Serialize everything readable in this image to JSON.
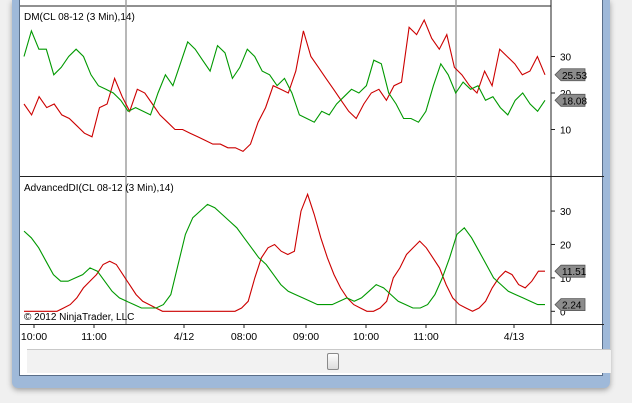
{
  "chart_data": [
    {
      "type": "line",
      "title": "DM(CL 08-12 (3 Min),14)",
      "ylim": [
        0,
        40
      ],
      "yticks": [
        10,
        20,
        30
      ],
      "series": [
        {
          "color": "#cc0000",
          "current": "25.53",
          "values": [
            17,
            14,
            19,
            16,
            17,
            14,
            13,
            11,
            9,
            8,
            16,
            17,
            24,
            19,
            15,
            21,
            20,
            17,
            14,
            12,
            10,
            10,
            9,
            8,
            7,
            6,
            6,
            5,
            5,
            4,
            6,
            12,
            16,
            22,
            21,
            20,
            26,
            37,
            30,
            27,
            24,
            21,
            18,
            15,
            13,
            17,
            20,
            21,
            18,
            22,
            23,
            38,
            36,
            40,
            35,
            32,
            36,
            27,
            25,
            22,
            20,
            26,
            22,
            32,
            30,
            28,
            25,
            26,
            30,
            25
          ]
        },
        {
          "color": "#009900",
          "current": "18.08",
          "values": [
            30,
            37,
            32,
            32,
            25,
            27,
            30,
            32,
            30,
            25,
            22,
            21,
            20,
            18,
            15,
            16,
            15,
            14,
            20,
            25,
            22,
            28,
            34,
            32,
            29,
            26,
            33,
            31,
            24,
            27,
            32,
            30,
            26,
            25,
            22,
            24,
            20,
            14,
            13,
            12,
            15,
            14,
            17,
            19,
            21,
            20,
            22,
            29,
            28,
            20,
            17,
            13,
            13,
            12,
            15,
            22,
            28,
            25,
            20,
            23,
            21,
            22,
            18,
            19,
            16,
            14,
            18,
            20,
            17,
            15,
            18
          ]
        }
      ]
    },
    {
      "type": "line",
      "title": "AdvancedDI(CL 08-12 (3 Min),14)",
      "ylim": [
        -2,
        36
      ],
      "yticks": [
        0,
        10,
        20,
        30
      ],
      "series": [
        {
          "color": "#cc0000",
          "current": "11.51",
          "values": [
            0,
            0,
            0,
            0,
            0,
            0,
            1,
            2,
            4,
            7,
            9,
            11,
            14,
            15,
            14,
            11,
            8,
            5,
            3,
            2,
            1,
            0,
            0,
            0,
            0,
            0,
            0,
            0,
            0,
            0,
            0,
            0,
            0,
            1,
            3,
            10,
            16,
            19,
            20,
            18,
            17,
            18,
            30,
            35,
            29,
            22,
            16,
            11,
            7,
            4,
            2,
            1,
            0,
            0,
            1,
            3,
            10,
            13,
            17,
            19,
            21,
            19,
            16,
            13,
            8,
            4,
            2,
            1,
            0,
            1,
            3,
            7,
            10,
            12,
            11,
            8,
            7,
            9,
            12,
            12
          ]
        },
        {
          "color": "#009900",
          "current": "2.24",
          "values": [
            24,
            22,
            19,
            15,
            11,
            9,
            9,
            10,
            11,
            13,
            12,
            9,
            6,
            4,
            3,
            2,
            1,
            1,
            1,
            2,
            5,
            14,
            23,
            28,
            30,
            32,
            31,
            29,
            27,
            25,
            22,
            19,
            16,
            14,
            11,
            8,
            6,
            5,
            4,
            3,
            2,
            2,
            2,
            3,
            4,
            3,
            4,
            6,
            8,
            7,
            5,
            3,
            2,
            1,
            1,
            2,
            5,
            10,
            16,
            23,
            25,
            22,
            18,
            14,
            10,
            8,
            6,
            5,
            4,
            3,
            2,
            2
          ]
        }
      ]
    }
  ],
  "x_axis": {
    "labels": [
      "10:00",
      "11:00",
      "4/12",
      "08:00",
      "09:00",
      "10:00",
      "11:00",
      "4/13"
    ]
  },
  "copyright": "© 2012 NinjaTrader, LLC"
}
